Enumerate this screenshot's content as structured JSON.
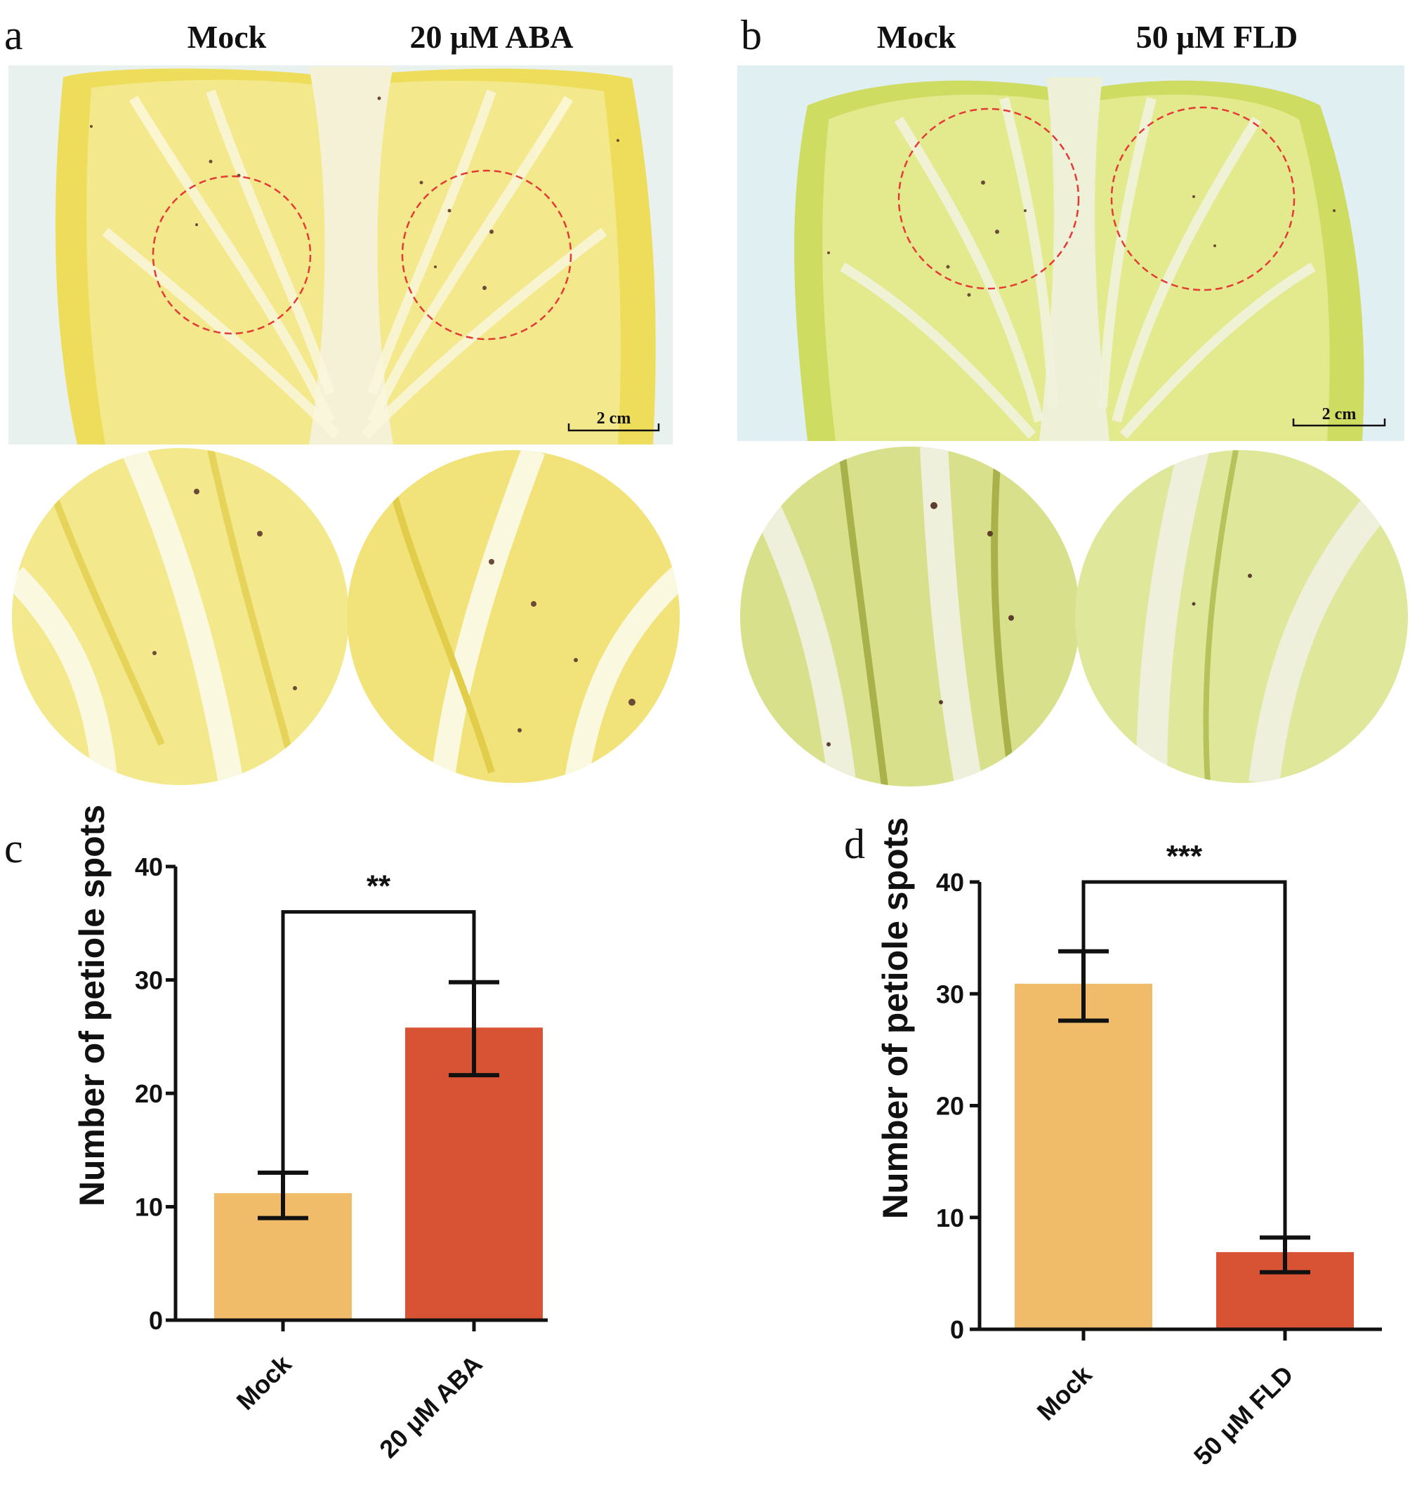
{
  "panels": {
    "a": {
      "letter": "a",
      "titles": [
        "Mock",
        "20 μM ABA"
      ],
      "scale_bar": "2 cm",
      "colors": {
        "leaf": "#f3e98c",
        "leaf_edge": "#eedd5a",
        "midrib": "#f4f1d6",
        "background": "#e9f1ee",
        "circle": "#e53935"
      }
    },
    "b": {
      "letter": "b",
      "titles": [
        "Mock",
        "50 μM FLD"
      ],
      "scale_bar": "2 cm",
      "colors": {
        "leaf": "#e3ea8e",
        "leaf_edge": "#cfdc62",
        "midrib": "#eef0d8",
        "background": "#dfeff2",
        "circle": "#e53935"
      }
    }
  },
  "chart_data": [
    {
      "panel": "c",
      "type": "bar",
      "categories": [
        "Mock",
        "20 μM ABA"
      ],
      "values": [
        11.2,
        25.8
      ],
      "error_upper": [
        13.0,
        29.8
      ],
      "error_lower": [
        9.0,
        21.6
      ],
      "ylabel": "Number of petiole spots",
      "ylim": [
        0,
        40
      ],
      "yticks": [
        0,
        10,
        20,
        30,
        40
      ],
      "significance": {
        "label": "**",
        "between": [
          0,
          1
        ],
        "y": 36
      },
      "colors": [
        "#f0bc6a",
        "#d85234"
      ],
      "grid": false
    },
    {
      "panel": "d",
      "type": "bar",
      "categories": [
        "Mock",
        "50 μM FLD"
      ],
      "values": [
        30.9,
        6.9
      ],
      "error_upper": [
        33.8,
        8.2
      ],
      "error_lower": [
        27.6,
        5.1
      ],
      "ylabel": "Number of petiole spots",
      "ylim": [
        0,
        40
      ],
      "yticks": [
        0,
        10,
        20,
        30,
        40
      ],
      "significance": {
        "label": "***",
        "between": [
          0,
          1
        ],
        "y": 40
      },
      "colors": [
        "#f0bc6a",
        "#d85234"
      ],
      "grid": false
    }
  ]
}
